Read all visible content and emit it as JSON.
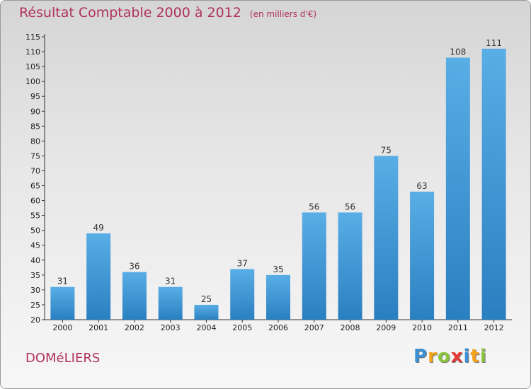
{
  "chart_data": {
    "type": "bar",
    "title": "Résultat Comptable 2000 à 2012",
    "subtitle": "(en milliers d'€)",
    "categories": [
      "2000",
      "2001",
      "2002",
      "2003",
      "2004",
      "2005",
      "2006",
      "2007",
      "2008",
      "2009",
      "2010",
      "2011",
      "2012"
    ],
    "values": [
      31,
      49,
      36,
      31,
      25,
      37,
      35,
      56,
      56,
      75,
      63,
      108,
      111
    ],
    "ylim": [
      20,
      115
    ],
    "yticks": [
      20,
      25,
      30,
      35,
      40,
      45,
      50,
      55,
      60,
      65,
      70,
      75,
      80,
      85,
      90,
      95,
      100,
      105,
      110,
      115
    ],
    "xlabel": "",
    "ylabel": "",
    "grid": false,
    "bar_color_top": "#5aaee6",
    "bar_color_bottom": "#2a7fc0"
  },
  "place": "DOMéLIERS",
  "logo": {
    "letters": [
      "P",
      "r",
      "o",
      "x",
      "i",
      "t",
      "i"
    ],
    "colors": [
      "#3a8fd6",
      "#f3a21a",
      "#8bc540",
      "#e53935",
      "#3a8fd6",
      "#f3a21a",
      "#8bc540"
    ]
  }
}
